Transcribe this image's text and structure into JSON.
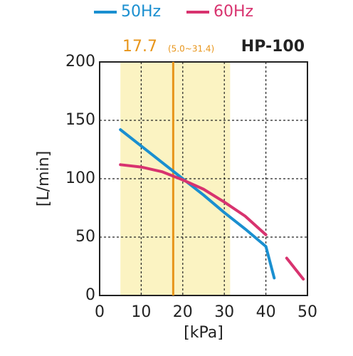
{
  "chart_data": {
    "type": "line",
    "model": "HP-100",
    "xlabel": "[kPa]",
    "ylabel": "[L/min]",
    "x": [
      5,
      10,
      15,
      20,
      25,
      30,
      35,
      40,
      42,
      45,
      49
    ],
    "series": [
      {
        "name": "50Hz",
        "color": "#1a8fd0",
        "values": [
          142,
          128,
          114,
          100,
          86,
          71,
          57,
          42,
          15,
          null,
          null
        ]
      },
      {
        "name": "60Hz",
        "color": "#d8336f",
        "values": [
          112,
          110,
          106,
          99,
          91,
          80,
          68,
          52,
          null,
          32,
          14
        ]
      }
    ],
    "reference": {
      "value": 17.7,
      "label": "17.7",
      "color": "#e8951a"
    },
    "range": {
      "values": [
        5,
        31.4
      ],
      "labels": "(5.0~31.4)",
      "color": "#fbf3c2"
    },
    "xlim": [
      0,
      50
    ],
    "xticks": [
      0,
      10,
      20,
      30,
      40,
      50
    ],
    "ylim": [
      0,
      200
    ],
    "yticks": [
      0,
      50,
      100,
      150,
      200
    ],
    "grid": true,
    "legend": "top"
  }
}
